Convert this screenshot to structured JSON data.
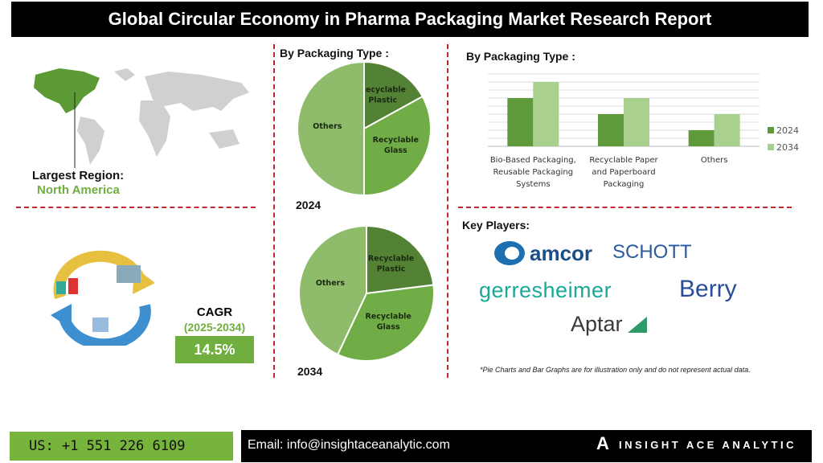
{
  "title": "Global Circular Economy in Pharma Packaging Market Research Report",
  "region": {
    "label": "Largest Region:",
    "value": "North America"
  },
  "cagr": {
    "label": "CAGR",
    "period": "(2025-2034)",
    "value": "14.5%"
  },
  "colors": {
    "dark_green": "#548235",
    "mid_green": "#70ad47",
    "light_green": "#8fbc6b",
    "bar_2024": "#5f9a3a",
    "bar_2034": "#a9d08e",
    "divider": "#c0272d"
  },
  "chart_data": [
    {
      "type": "pie",
      "title": "By Packaging Type :",
      "year_label": "2024",
      "start": "top",
      "direction": "clockwise",
      "slices": [
        {
          "label": "Recyclable Plastic",
          "value": 17
        },
        {
          "label": "Recyclable Glass",
          "value": 33
        },
        {
          "label": "Others",
          "value": 50
        }
      ]
    },
    {
      "type": "pie",
      "title": "",
      "year_label": "2034",
      "start": "top",
      "direction": "clockwise",
      "slices": [
        {
          "label": "Recyclable Plastic",
          "value": 23
        },
        {
          "label": "Recyclable Glass",
          "value": 34
        },
        {
          "label": "Others",
          "value": 43
        }
      ]
    },
    {
      "type": "bar",
      "title": "By Packaging Type :",
      "categories": [
        "Bio-Based Packaging, Reusable Packaging Systems",
        "Recyclable Paper and Paperboard Packaging",
        "Others"
      ],
      "series": [
        {
          "name": "2024",
          "values": [
            6,
            4,
            2
          ]
        },
        {
          "name": "2034",
          "values": [
            8,
            6,
            4
          ]
        }
      ],
      "ylim": [
        0,
        9
      ],
      "grid": true,
      "legend": "right",
      "y_ticks_shown": false
    }
  ],
  "key_players": {
    "label": "Key Players:",
    "logos": [
      "amcor",
      "SCHOTT",
      "gerresheimer",
      "Berry",
      "Aptar"
    ]
  },
  "disclaimer": "*Pie Charts and Bar Graphs are for illustration only and do not represent actual data.",
  "footer": {
    "phone": "US: +1 551 226 6109",
    "email": "Email: info@insightaceanalytic.com",
    "brand": "INSIGHT ACE ANALYTIC"
  }
}
